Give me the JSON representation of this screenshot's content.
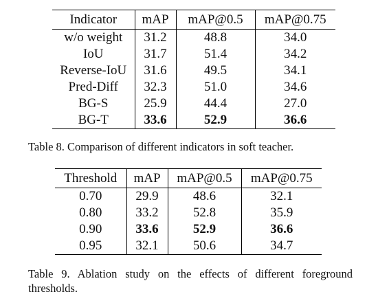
{
  "table8": {
    "headers": [
      "Indicator",
      "mAP",
      "mAP@0.5",
      "mAP@0.75"
    ],
    "rows": [
      [
        "w/o weight",
        "31.2",
        "48.8",
        "34.0"
      ],
      [
        "IoU",
        "31.7",
        "51.4",
        "34.2"
      ],
      [
        "Reverse-IoU",
        "31.6",
        "49.5",
        "34.1"
      ],
      [
        "Pred-Diff",
        "32.3",
        "51.0",
        "34.6"
      ],
      [
        "BG-S",
        "25.9",
        "44.4",
        "27.0"
      ],
      [
        "BG-T",
        "33.6",
        "52.9",
        "36.6"
      ]
    ],
    "caption": "Table 8. Comparison of different indicators in soft teacher."
  },
  "table9": {
    "headers": [
      "Threshold",
      "mAP",
      "mAP@0.5",
      "mAP@0.75"
    ],
    "rows": [
      [
        "0.70",
        "29.9",
        "48.6",
        "32.1"
      ],
      [
        "0.80",
        "33.2",
        "52.8",
        "35.9"
      ],
      [
        "0.90",
        "33.6",
        "52.9",
        "36.6"
      ],
      [
        "0.95",
        "32.1",
        "50.6",
        "34.7"
      ]
    ],
    "caption": "Table 9. Ablation study on the effects of different foreground thresholds."
  }
}
